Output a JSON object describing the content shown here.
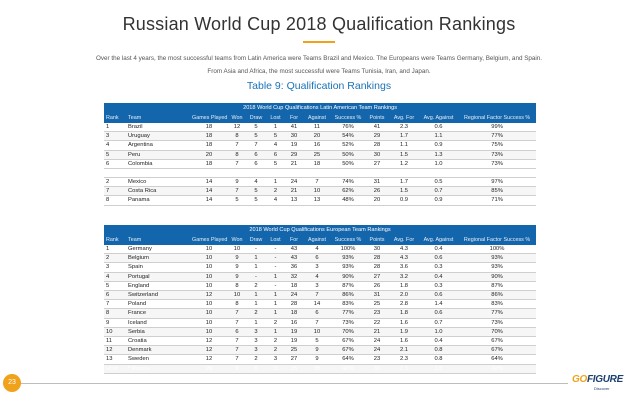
{
  "page": {
    "title": "Russian World Cup 2018 Qualification Rankings",
    "intro_line1": "Over the last 4 years, the most successful teams from Latin America were Teams Brazil and Mexico. The Europeans were Teams Germany, Belgium, and Spain.",
    "intro_line2": "From Asia and Africa, the most successful were Teams Tunisia, Iran, and Japan.",
    "table_caption": "Table 9: Qualification Rankings",
    "page_number": "23",
    "accent_color": "#f0a21b",
    "table_color": "#1466ac"
  },
  "latin_table": {
    "title": "2018 World Cup Qualifications Latin American Team Rankings",
    "headers": [
      "Rank",
      "Team",
      "Games Played",
      "Won",
      "Draw",
      "Lost",
      "For",
      "Against",
      "Success %",
      "Points",
      "Avg. For",
      "Avg. Against",
      "Regional Factor Success %"
    ],
    "rows": [
      [
        "1",
        "Brazil",
        "18",
        "12",
        "5",
        "1",
        "41",
        "11",
        "76%",
        "41",
        "2.3",
        "0.6",
        "99%"
      ],
      [
        "3",
        "Uruguay",
        "18",
        "8",
        "5",
        "5",
        "30",
        "20",
        "54%",
        "29",
        "1.7",
        "1.1",
        "77%"
      ],
      [
        "4",
        "Argentina",
        "18",
        "7",
        "7",
        "4",
        "19",
        "16",
        "52%",
        "28",
        "1.1",
        "0.9",
        "75%"
      ],
      [
        "5",
        "Peru",
        "20",
        "8",
        "6",
        "6",
        "29",
        "25",
        "50%",
        "30",
        "1.5",
        "1.3",
        "73%"
      ],
      [
        "6",
        "Colombia",
        "18",
        "7",
        "6",
        "5",
        "21",
        "18",
        "50%",
        "27",
        "1.2",
        "1.0",
        "73%"
      ],
      [
        "",
        "",
        "",
        "",
        "",
        "",
        "",
        "",
        "",
        "",
        "",
        "",
        ""
      ],
      [
        "2",
        "Mexico",
        "14",
        "9",
        "4",
        "1",
        "24",
        "7",
        "74%",
        "31",
        "1.7",
        "0.5",
        "97%"
      ],
      [
        "7",
        "Costa Rica",
        "14",
        "7",
        "5",
        "2",
        "21",
        "10",
        "62%",
        "26",
        "1.5",
        "0.7",
        "85%"
      ],
      [
        "8",
        "Panama",
        "14",
        "5",
        "5",
        "4",
        "13",
        "13",
        "48%",
        "20",
        "0.9",
        "0.9",
        "71%"
      ]
    ]
  },
  "euro_table": {
    "title": "2018 World Cup Qualifications European Team Rankings",
    "headers": [
      "Rank",
      "Team",
      "Games Played",
      "Won",
      "Draw",
      "Lost",
      "For",
      "Against",
      "Success %",
      "Points",
      "Avg. For",
      "Avg. Against",
      "Regional Factor Success %"
    ],
    "rows": [
      [
        "1",
        "Germany",
        "10",
        "10",
        "-",
        "-",
        "43",
        "4",
        "100%",
        "30",
        "4.3",
        "0.4",
        "100%"
      ],
      [
        "2",
        "Belgium",
        "10",
        "9",
        "1",
        "-",
        "43",
        "6",
        "93%",
        "28",
        "4.3",
        "0.6",
        "93%"
      ],
      [
        "3",
        "Spain",
        "10",
        "9",
        "1",
        "-",
        "36",
        "3",
        "93%",
        "28",
        "3.6",
        "0.3",
        "93%"
      ],
      [
        "4",
        "Portugal",
        "10",
        "9",
        "-",
        "1",
        "32",
        "4",
        "90%",
        "27",
        "3.2",
        "0.4",
        "90%"
      ],
      [
        "5",
        "England",
        "10",
        "8",
        "2",
        "-",
        "18",
        "3",
        "87%",
        "26",
        "1.8",
        "0.3",
        "87%"
      ],
      [
        "6",
        "Switzerland",
        "12",
        "10",
        "1",
        "1",
        "24",
        "7",
        "86%",
        "31",
        "2.0",
        "0.6",
        "86%"
      ],
      [
        "7",
        "Poland",
        "10",
        "8",
        "1",
        "1",
        "28",
        "14",
        "83%",
        "25",
        "2.8",
        "1.4",
        "83%"
      ],
      [
        "8",
        "France",
        "10",
        "7",
        "2",
        "1",
        "18",
        "6",
        "77%",
        "23",
        "1.8",
        "0.6",
        "77%"
      ],
      [
        "9",
        "Iceland",
        "10",
        "7",
        "1",
        "2",
        "16",
        "7",
        "73%",
        "22",
        "1.6",
        "0.7",
        "73%"
      ],
      [
        "10",
        "Serbia",
        "10",
        "6",
        "3",
        "1",
        "19",
        "10",
        "70%",
        "21",
        "1.9",
        "1.0",
        "70%"
      ],
      [
        "11",
        "Croatia",
        "12",
        "7",
        "3",
        "2",
        "19",
        "5",
        "67%",
        "24",
        "1.6",
        "0.4",
        "67%"
      ],
      [
        "12",
        "Denmark",
        "12",
        "7",
        "3",
        "2",
        "25",
        "9",
        "67%",
        "24",
        "2.1",
        "0.8",
        "67%"
      ],
      [
        "13",
        "Sweden",
        "12",
        "7",
        "2",
        "3",
        "27",
        "9",
        "64%",
        "23",
        "2.3",
        "0.8",
        "64%"
      ],
      [
        "Host",
        "* Russia",
        "26",
        "9",
        "6",
        "11",
        "35",
        "38",
        "42%",
        "33",
        "1.3",
        "1.5",
        "42%"
      ]
    ]
  },
  "logo": {
    "text_go": "GO",
    "text_figure": "FIGURE",
    "subtext": "Discover"
  }
}
